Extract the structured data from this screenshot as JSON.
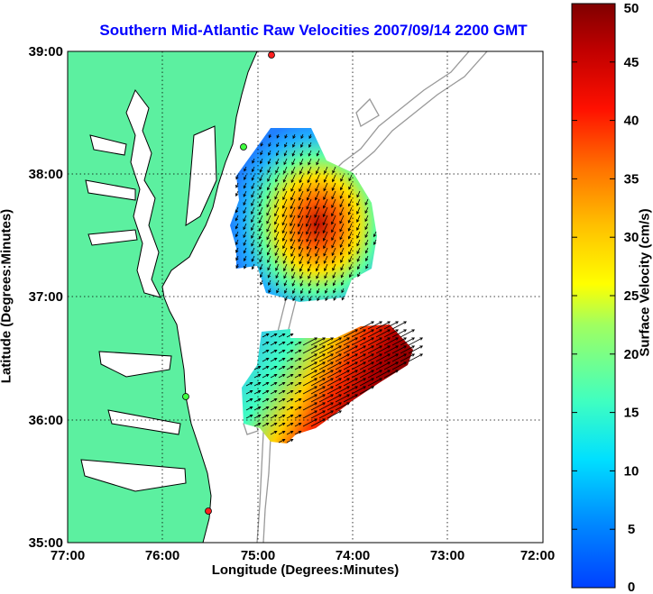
{
  "title": "Southern Mid-Atlantic Raw Velocities 2007/09/14 2200 GMT",
  "xlabel": "Longitude (Degrees:Minutes)",
  "ylabel": "Latitude (Degrees:Minutes)",
  "colorbar": {
    "label": "Surface Velocity (cm/s)",
    "min": 0,
    "max": 50,
    "ticks": [
      "0",
      "5",
      "10",
      "15",
      "20",
      "25",
      "30",
      "35",
      "40",
      "45",
      "50"
    ]
  },
  "axes": {
    "x_ticks": [
      "77:00",
      "76:00",
      "75:00",
      "74:00",
      "73:00",
      "72:00"
    ],
    "y_ticks": [
      "39:00",
      "38:00",
      "37:00",
      "36:00",
      "35:00"
    ],
    "grid": "dotted"
  },
  "colors": {
    "title": "#0000ff",
    "land": "#5cf0a0",
    "ocean": "#ffffff",
    "coast": "#000000",
    "bathymetry": "#999999",
    "station": "#ff2020"
  }
}
